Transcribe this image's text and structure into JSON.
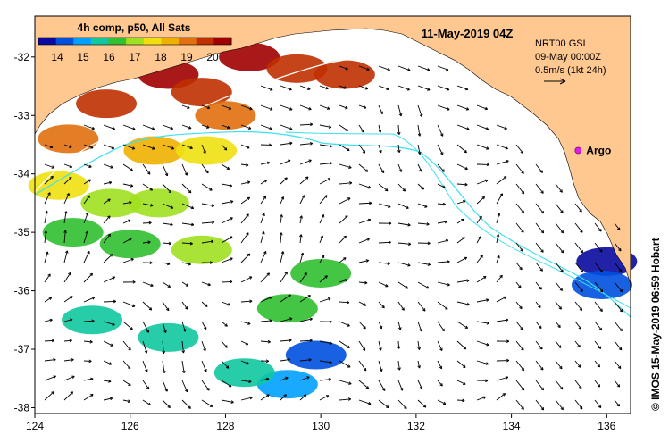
{
  "map": {
    "title": "11-May-2019 04Z",
    "colorbar": {
      "title": "4h comp, p50, All Sats",
      "ticks": [
        "14",
        "15",
        "16",
        "17",
        "18",
        "19",
        "20"
      ],
      "colors": [
        "#0a0aa0",
        "#0050e0",
        "#00a0ff",
        "#10c8a0",
        "#30c030",
        "#a0e020",
        "#f0e010",
        "#f0b000",
        "#e07010",
        "#c03000",
        "#a00000"
      ]
    },
    "legend": {
      "line1": "NRT00 GSL",
      "line2": "09-May 00:00Z",
      "line3": "0.5m/s (1kt 24h)"
    },
    "argo_label": "Argo",
    "credit": "© IMOS 15-May-2019 06:59 Hobart",
    "x_axis": {
      "labels": [
        "124",
        "126",
        "128",
        "130",
        "132",
        "134",
        "136"
      ]
    },
    "y_axis": {
      "labels": [
        "-32",
        "-33",
        "-34",
        "-35",
        "-36",
        "-37",
        "-38"
      ]
    },
    "colors": {
      "land": "#ffc891",
      "ocean": "#ffffff",
      "contour_200m": "#3de0f0",
      "contour_2000m": "#ffffff",
      "argo_marker": "#e020e0",
      "arrow": "#000000"
    },
    "sst_patches": [
      {
        "lon": 126.8,
        "lat": -32.3,
        "temp": 20.2
      },
      {
        "lon": 127.5,
        "lat": -32.6,
        "temp": 20.0
      },
      {
        "lon": 128.5,
        "lat": -32.0,
        "temp": 20.3
      },
      {
        "lon": 129.5,
        "lat": -32.2,
        "temp": 20.1
      },
      {
        "lon": 130.5,
        "lat": -32.3,
        "temp": 19.9
      },
      {
        "lon": 125.5,
        "lat": -32.8,
        "temp": 19.6
      },
      {
        "lon": 128.0,
        "lat": -33.0,
        "temp": 19.3
      },
      {
        "lon": 124.7,
        "lat": -33.4,
        "temp": 18.8
      },
      {
        "lon": 126.5,
        "lat": -33.6,
        "temp": 18.4
      },
      {
        "lon": 127.6,
        "lat": -33.6,
        "temp": 18.1
      },
      {
        "lon": 124.5,
        "lat": -34.2,
        "temp": 17.5
      },
      {
        "lon": 125.6,
        "lat": -34.5,
        "temp": 16.9
      },
      {
        "lon": 126.6,
        "lat": -34.5,
        "temp": 16.8
      },
      {
        "lon": 124.8,
        "lat": -35.0,
        "temp": 16.6
      },
      {
        "lon": 126.0,
        "lat": -35.2,
        "temp": 16.7
      },
      {
        "lon": 127.5,
        "lat": -35.3,
        "temp": 16.9
      },
      {
        "lon": 130.0,
        "lat": -35.7,
        "temp": 16.6
      },
      {
        "lon": 129.3,
        "lat": -36.3,
        "temp": 16.4
      },
      {
        "lon": 125.2,
        "lat": -36.5,
        "temp": 15.8
      },
      {
        "lon": 126.8,
        "lat": -36.8,
        "temp": 15.9
      },
      {
        "lon": 129.9,
        "lat": -37.1,
        "temp": 14.1
      },
      {
        "lon": 129.3,
        "lat": -37.6,
        "temp": 15.3
      },
      {
        "lon": 128.4,
        "lat": -37.4,
        "temp": 15.6
      },
      {
        "lon": 136.0,
        "lat": -35.5,
        "temp": 14.0
      },
      {
        "lon": 135.9,
        "lat": -35.9,
        "temp": 14.2
      }
    ],
    "argo": {
      "lon": 135.4,
      "lat": -33.6
    }
  }
}
